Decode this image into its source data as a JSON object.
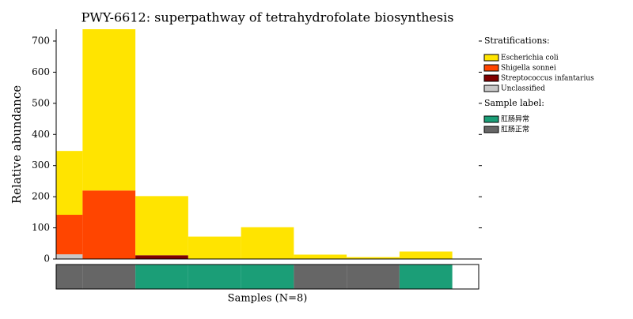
{
  "chart_data": {
    "type": "bar",
    "stacked": true,
    "title": "PWY-6612: superpathway of tetrahydrofolate biosynthesis",
    "ylabel": "Relative abundance",
    "xlabel": "Samples (N=8)",
    "xlim": [
      0,
      8
    ],
    "ylim": [
      0,
      738
    ],
    "yticks": [
      0,
      100,
      200,
      300,
      400,
      500,
      600,
      700
    ],
    "legend_title": "Stratifications:",
    "series": [
      {
        "name": "Escherichia coli",
        "color": "#ffe400",
        "values": [
          205,
          520,
          190,
          72,
          102,
          14,
          6,
          24
        ]
      },
      {
        "name": "Shigella sonnei",
        "color": "#ff4500",
        "values": [
          127,
          220,
          0,
          0,
          0,
          0,
          0,
          0
        ]
      },
      {
        "name": "Streptococcus infantarius",
        "color": "#800000",
        "values": [
          0,
          0,
          12,
          0,
          0,
          0,
          0,
          0
        ]
      },
      {
        "name": "Unclassified",
        "color": "#c8c8c8",
        "values": [
          15,
          0,
          0,
          0,
          0,
          0,
          0,
          0
        ]
      }
    ],
    "sample_label": {
      "title": "Sample label:",
      "groups": [
        {
          "name": "肛肠异常",
          "color": "#1b9e77"
        },
        {
          "name": "肛肠正常",
          "color": "#666666"
        }
      ],
      "values": [
        1,
        1,
        0,
        0,
        0,
        1,
        1,
        0
      ]
    }
  }
}
